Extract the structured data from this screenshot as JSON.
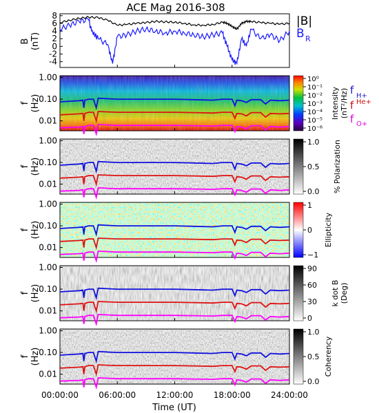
{
  "chart_data": [
    {
      "type": "line",
      "title": "ACE Mag 2016-308",
      "ylabel_line1": "B",
      "ylabel_line2": "(nT)",
      "ylim": [
        -5.5,
        8.5
      ],
      "y_ticks": [
        8,
        6,
        4,
        2,
        0,
        -2,
        -4
      ],
      "legend_position": "right",
      "legend": [
        {
          "name": "|B|",
          "color": "#000000"
        },
        {
          "name": "B",
          "sub": "R",
          "color": "#1a1aff"
        }
      ],
      "series": [
        {
          "name": "|B|",
          "color": "#000000",
          "x": [
            0,
            1,
            2,
            3,
            4,
            5,
            6,
            7,
            8,
            9,
            10,
            11,
            12,
            13,
            14,
            15,
            16,
            17,
            17.5,
            18,
            18.5,
            19,
            19.5,
            20,
            21,
            22,
            23,
            24
          ],
          "values": [
            6.2,
            6.8,
            7.3,
            7.6,
            7.5,
            6.8,
            5.5,
            5.7,
            6.0,
            6.2,
            6.5,
            6.4,
            6.3,
            6.0,
            5.6,
            5.5,
            5.7,
            6.3,
            6.0,
            5.2,
            4.5,
            6.0,
            6.5,
            6.5,
            6.2,
            6.0,
            5.8,
            6.0
          ]
        },
        {
          "name": "B",
          "sub": "R",
          "color": "#1a1aff",
          "x": [
            0,
            1,
            2,
            3,
            3.3,
            4,
            5,
            5.5,
            6,
            7,
            8,
            9,
            10,
            11,
            12,
            13,
            14,
            15,
            16,
            17,
            17.5,
            18,
            18.5,
            19,
            19.5,
            20,
            21,
            22,
            23,
            24
          ],
          "values": [
            4.5,
            5.5,
            6.5,
            7.0,
            4.0,
            2.0,
            0.5,
            -4.5,
            2.5,
            3.0,
            4.0,
            4.5,
            4.0,
            3.5,
            4.0,
            3.5,
            3.0,
            2.5,
            3.0,
            3.5,
            0.0,
            -3.5,
            -4.5,
            2.0,
            0.0,
            4.5,
            2.0,
            3.0,
            1.5,
            4.0
          ]
        }
      ],
      "xlim": [
        0,
        24
      ]
    },
    {
      "type": "heatmap",
      "ylabel_line1": "f",
      "ylabel_line2": "(Hz)",
      "y_scale": "log",
      "ylim": [
        0.0035,
        1.2
      ],
      "y_ticks": [
        1.0,
        0.1,
        0.01
      ],
      "y_tick_labels": [
        "1.00",
        "0.10",
        "0.01"
      ],
      "colormap": "rainbow",
      "colorbar_title_line1": "Intensity",
      "colorbar_title_line2": "(nT²/Hz)",
      "colorbar_ticks": [
        "10⁰",
        "10⁻¹",
        "10⁻²",
        "10⁻³",
        "10⁻⁴",
        "10⁻⁵",
        "10⁻⁶"
      ],
      "gyrofrequency_legend": [
        {
          "label": "f",
          "sub": "H+",
          "color": "#2020d0"
        },
        {
          "label": "f",
          "sup": "He+",
          "color": "#d01010"
        },
        {
          "label": "f",
          "sub": "O+",
          "color": "#e000e0"
        }
      ]
    },
    {
      "type": "heatmap",
      "ylabel_line1": "f",
      "ylabel_line2": "(Hz)",
      "y_scale": "log",
      "y_tick_labels": [
        "1.00",
        "0.10",
        "0.01"
      ],
      "colormap": "grayscale",
      "colorbar_title": "% Polarization",
      "colorbar_ticks": [
        "1.0",
        "0.5",
        "0.0"
      ]
    },
    {
      "type": "heatmap",
      "ylabel_line1": "f",
      "ylabel_line2": "(Hz)",
      "y_scale": "log",
      "y_tick_labels": [
        "1.00",
        "0.10",
        "0.01"
      ],
      "colormap": "blue-white-red",
      "colorbar_title": "Ellipticity",
      "colorbar_ticks": [
        "1",
        "0",
        "−1"
      ]
    },
    {
      "type": "heatmap",
      "ylabel_line1": "f",
      "ylabel_line2": "(Hz)",
      "y_scale": "log",
      "y_tick_labels": [
        "1.00",
        "0.10",
        "0.01"
      ],
      "colormap": "grayscale",
      "colorbar_title_line1": "k dot B",
      "colorbar_title_line2": "(Deg)",
      "colorbar_ticks": [
        "90",
        "60",
        "30",
        "0"
      ]
    },
    {
      "type": "heatmap",
      "ylabel_line1": "f",
      "ylabel_line2": "(Hz)",
      "y_scale": "log",
      "y_tick_labels": [
        "1.00",
        "0.10",
        "0.01"
      ],
      "colormap": "grayscale",
      "colorbar_title": "Coherency",
      "colorbar_ticks": [
        "1.0",
        "0.5",
        "0.0"
      ]
    }
  ],
  "gyrofrequency_lines": {
    "x": [
      0,
      1,
      2,
      2.4,
      2.5,
      2.6,
      3,
      3.5,
      3.8,
      4,
      6,
      8,
      10,
      12,
      14,
      16,
      17,
      18,
      18.3,
      18.5,
      19,
      19.5,
      20,
      21,
      21.5,
      22,
      23,
      24
    ],
    "H+": [
      0.075,
      0.08,
      0.085,
      0.09,
      0.04,
      0.09,
      0.1,
      0.1,
      0.04,
      0.11,
      0.1,
      0.1,
      0.1,
      0.1,
      0.095,
      0.09,
      0.1,
      0.1,
      0.05,
      0.09,
      0.085,
      0.07,
      0.095,
      0.095,
      0.06,
      0.09,
      0.085,
      0.09
    ],
    "He+": [
      0.019,
      0.02,
      0.021,
      0.022,
      0.01,
      0.022,
      0.025,
      0.025,
      0.01,
      0.027,
      0.025,
      0.025,
      0.025,
      0.025,
      0.024,
      0.023,
      0.025,
      0.025,
      0.013,
      0.022,
      0.021,
      0.017,
      0.024,
      0.024,
      0.015,
      0.022,
      0.021,
      0.022
    ],
    "O+": [
      0.0048,
      0.005,
      0.0052,
      0.0055,
      0.0025,
      0.0055,
      0.0062,
      0.0062,
      0.0025,
      0.0068,
      0.0062,
      0.0062,
      0.0062,
      0.0062,
      0.006,
      0.0058,
      0.0062,
      0.0062,
      0.0032,
      0.0055,
      0.0052,
      0.0043,
      0.006,
      0.006,
      0.0038,
      0.0055,
      0.0052,
      0.0055
    ]
  },
  "x_axis": {
    "label": "Time (UT)",
    "ticks": [
      0,
      6,
      12,
      18,
      24
    ],
    "tick_labels": [
      "00:00:00",
      "06:00:00",
      "12:00:00",
      "18:00:00",
      "24:00:00"
    ]
  }
}
